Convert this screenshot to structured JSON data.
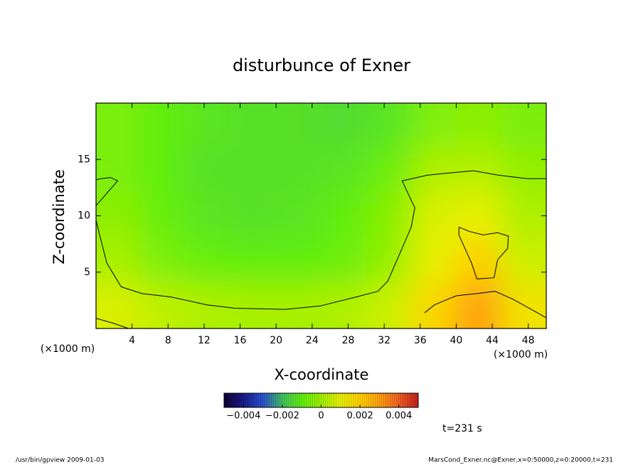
{
  "chart_data": {
    "type": "contour",
    "title": "disturbunce of Exner",
    "xlabel": "X-coordinate",
    "ylabel": "Z-coordinate",
    "x_unit": "(×1000 m)",
    "xlim": [
      0,
      50
    ],
    "ylim": [
      0,
      20
    ],
    "xticks": [
      4,
      8,
      12,
      16,
      20,
      24,
      28,
      32,
      36,
      40,
      44,
      48
    ],
    "yticks": [
      5,
      10,
      15
    ],
    "grid_x": [
      2.5,
      7.5,
      12.5,
      17.5,
      22.5,
      27.5,
      32.5,
      37.5,
      42.5,
      47.5
    ],
    "grid_y": [
      18,
      14,
      10,
      6,
      2
    ],
    "z": [
      [
        -0.0006,
        -0.001,
        -0.0012,
        -0.0013,
        -0.0013,
        -0.0014,
        -0.0012,
        -0.0005,
        -0.0003,
        -0.0006
      ],
      [
        -0.0006,
        -0.001,
        -0.0013,
        -0.0013,
        -0.0013,
        -0.0012,
        -0.0008,
        0.0002,
        0.0003,
        -0.0002
      ],
      [
        -0.0003,
        -0.0009,
        -0.0012,
        -0.0013,
        -0.0012,
        -0.001,
        -0.0004,
        0.0008,
        0.001,
        0.0002
      ],
      [
        0.0001,
        -0.0006,
        -0.0009,
        -0.001,
        -0.001,
        -0.0008,
        -0.0002,
        0.001,
        0.002,
        0.0006
      ],
      [
        0.0008,
        0.0004,
        0.0002,
        0.0001,
        0.0001,
        0.0002,
        0.0006,
        0.0018,
        0.003,
        0.0014
      ]
    ],
    "colormap": [
      "#100030",
      "#1a1a8a",
      "#2a50d0",
      "#40c060",
      "#60ee10",
      "#a0f000",
      "#e8f000",
      "#ffd000",
      "#ffa010",
      "#f06020",
      "#c02020"
    ],
    "clim": [
      -0.005,
      0.005
    ],
    "cticks": [
      {
        "value": -0.004,
        "label": "−0.004"
      },
      {
        "value": -0.002,
        "label": "−0.002"
      },
      0,
      0.002,
      0.004
    ],
    "contours": [
      {
        "x": [
          0,
          0.4,
          1.2,
          2.8,
          5.1,
          8.3,
          12.3,
          15.4,
          21,
          24.9,
          28.9,
          31.3,
          32.4,
          33.6,
          35,
          35.4,
          34,
          36.8,
          39.2,
          41.9,
          44.7,
          47.9,
          50
        ],
        "y": [
          9.6,
          8.3,
          5.8,
          3.7,
          3.1,
          2.8,
          2.1,
          1.8,
          1.7,
          2.0,
          2.8,
          3.3,
          4.2,
          6.4,
          9,
          10.7,
          13.1,
          13.6,
          13.8,
          14.0,
          13.6,
          13.3,
          13.3
        ]
      },
      {
        "x": [
          0,
          1.2,
          2.4,
          1.6,
          0.6,
          0
        ],
        "y": [
          10.9,
          12.0,
          13.1,
          13.4,
          13.3,
          13.2
        ]
      },
      {
        "x": [
          40.3,
          41.5,
          43.0,
          44.6,
          45.8,
          45.7,
          44.6,
          44.2,
          42.3,
          41.7,
          40.3,
          40.3
        ],
        "y": [
          9.0,
          8.6,
          8.3,
          8.5,
          8.2,
          7.1,
          6.1,
          4.5,
          4.4,
          5.8,
          8.3,
          9.0
        ]
      },
      {
        "x": [
          36.5,
          37.6,
          40,
          42.3,
          44.3,
          46.3,
          50
        ],
        "y": [
          1.4,
          2.1,
          2.9,
          3.1,
          3.3,
          2.6,
          0.95
        ]
      },
      {
        "x": [
          0,
          2,
          3.6
        ],
        "y": [
          0.9,
          0.45,
          0
        ]
      }
    ],
    "annotation": "t=231 s",
    "footer_left": "/usr/bin/gpview  2009-01-03",
    "footer_right": "MarsCond_Exner.nc@Exner,x=0:50000,z=0:20000,t=231"
  }
}
